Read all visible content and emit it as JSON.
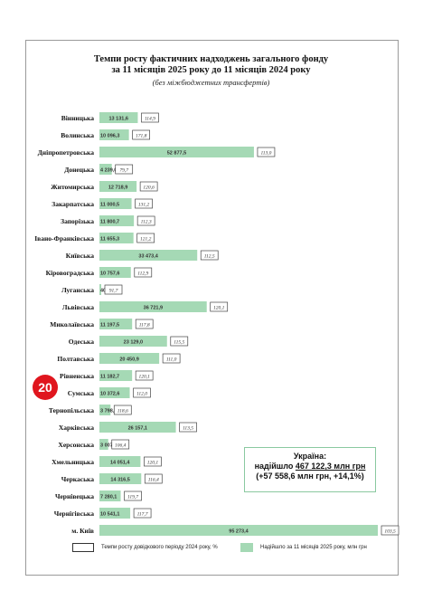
{
  "document": {
    "title_line1": "Темпи росту фактичних надходжень загального фонду",
    "title_line2": "за 11 місяців 2025 року до 11 місяців 2024 року",
    "subtitle": "(без міжбюджетних трансфертів)",
    "page_number": "20"
  },
  "summary": {
    "line1": "Україна:",
    "line2_prefix": "надійшло ",
    "line2_value": "467 122,3 млн грн",
    "line3": "(+57 558,6 млн грн, +14,1%)"
  },
  "legend": {
    "prior_growth_label": "Темпи росту довідкового періоду 2024 року, %",
    "receipts_label": "Надійшло за 11 місяців  2025 року, млн грн"
  },
  "colors": {
    "bar": "#a5d9b5",
    "badge": "#e0161e"
  },
  "chart_data": {
    "type": "bar",
    "orientation": "horizontal",
    "title": "Темпи росту фактичних надходжень загального фонду",
    "subtitle": "за 11 місяців 2025 року до 11 місяців 2024 року",
    "categories": [
      "Вінницька",
      "Волинська",
      "Дніпропетровська",
      "Донецька",
      "Житомирська",
      "Закарпатська",
      "Запорізька",
      "Івано-Франківська",
      "Київська",
      "Кіровоградська",
      "Луганська",
      "Львівська",
      "Миколаївська",
      "Одеська",
      "Полтавська",
      "Рівненська",
      "Сумська",
      "Тернопільська",
      "Харківська",
      "Херсонська",
      "Хмельницька",
      "Черкаська",
      "Чернівецька",
      "Чернігівська",
      "м. Київ"
    ],
    "series": [
      {
        "name": "Надійшло за 11 місяців  2025 року, млн грн",
        "values": [
          13131.6,
          10096.3,
          52877.5,
          4239.0,
          12718.9,
          11000.5,
          11800.7,
          11655.3,
          33473.4,
          10757.6,
          404.4,
          36721.9,
          11197.5,
          23129.0,
          20450.9,
          11182.7,
          10372.6,
          3798.5,
          26157.1,
          3007.8,
          14051.4,
          14316.5,
          7280.1,
          10541.1,
          95273.4
        ],
        "labels": [
          "13 131,6",
          "10 096,3",
          "52 877,5",
          "4 239,0",
          "12 718,9",
          "11 000,5",
          "11 800,7",
          "11 655,3",
          "33 473,4",
          "10 757,6",
          "404,4",
          "36 721,9",
          "11 197,5",
          "23 129,0",
          "20 450,9",
          "11 182,7",
          "10 372,6",
          "3 798,5",
          "26 157,1",
          "3 007,8",
          "14 051,4",
          "14 316,5",
          "7 280,1",
          "10 541,1",
          "95 273,4"
        ]
      },
      {
        "name": "Темпи росту довідкового періоду 2024 року, %",
        "labels": [
          "114,9",
          "171,8",
          "113,0",
          "79,7",
          "120,6",
          "131,2",
          "112,3",
          "121,2",
          "112,5",
          "112,9",
          "91,7",
          "120,1",
          "117,8",
          "115,5",
          "111,0",
          "120,1",
          "112,0",
          "118,6",
          "113,5",
          "106,4",
          "120,1",
          "116,4",
          "119,7",
          "117,7",
          "103,5"
        ]
      }
    ],
    "xlim": [
      0,
      95273.4
    ],
    "grid": false,
    "legend_position": "bottom"
  }
}
